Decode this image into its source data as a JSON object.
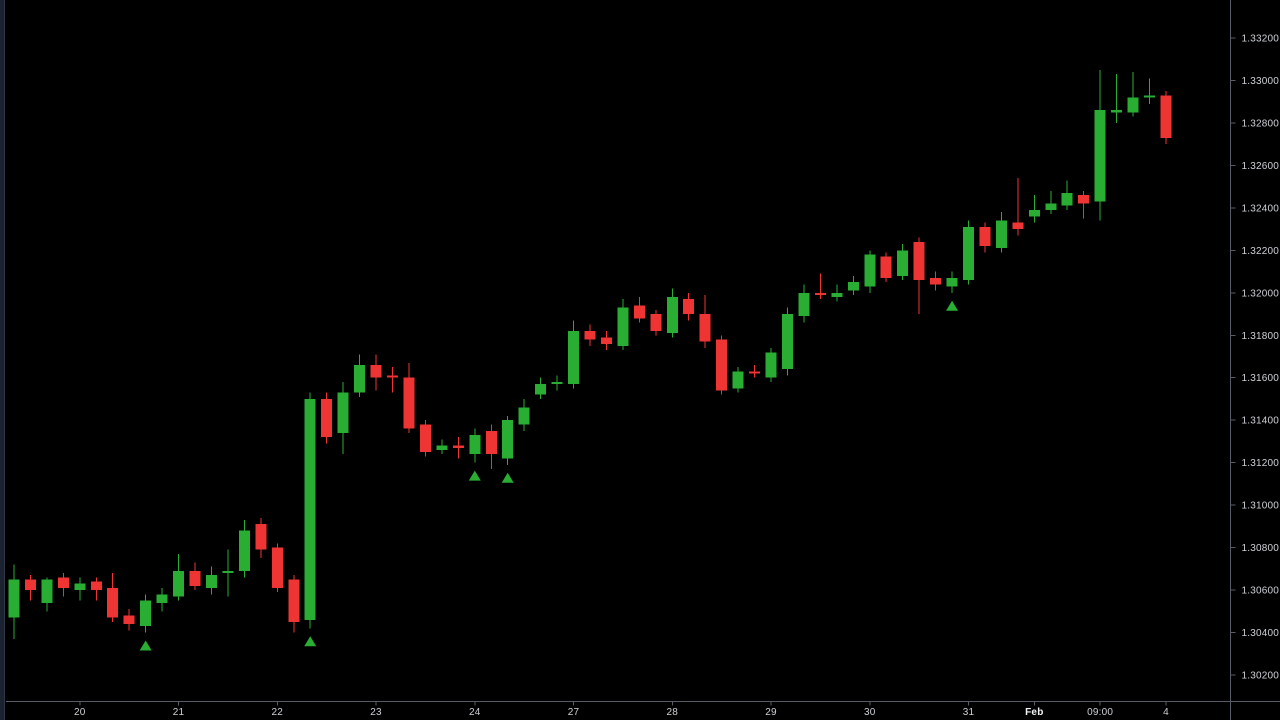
{
  "window": {
    "title": "candlestick-price-chart"
  },
  "chart": {
    "background_color": "#000000",
    "up_color": "#2aad33",
    "down_color": "#ef3434",
    "marker_color": "#2aad33",
    "axis_line_color": "#565b66",
    "axis_text_color": "#cdd0d6",
    "axis_text_emphasis_color": "#f2f3f5",
    "left_edge_color": "#1b2230",
    "left_edge_border_color": "#2e3546"
  },
  "chart_data": {
    "type": "candlestick",
    "title": "",
    "xlabel": "",
    "ylabel": "",
    "grid": false,
    "legend": false,
    "ylim": [
      1.302,
      1.332
    ],
    "y_tick_step": 0.002,
    "y_axis_labels": [
      "1.33200",
      "1.33000",
      "1.32800",
      "1.32600",
      "1.32400",
      "1.32200",
      "1.32000",
      "1.31800",
      "1.31600",
      "1.31400",
      "1.31200",
      "1.31000",
      "1.30800",
      "1.30600",
      "1.30400",
      "1.30200"
    ],
    "x_axis_labels": [
      {
        "index": 4,
        "label": "20"
      },
      {
        "index": 10,
        "label": "21"
      },
      {
        "index": 16,
        "label": "22"
      },
      {
        "index": 22,
        "label": "23"
      },
      {
        "index": 28,
        "label": "24"
      },
      {
        "index": 34,
        "label": "27"
      },
      {
        "index": 40,
        "label": "28"
      },
      {
        "index": 46,
        "label": "29"
      },
      {
        "index": 52,
        "label": "30"
      },
      {
        "index": 58,
        "label": "31"
      },
      {
        "index": 62,
        "label": "Feb",
        "emphasis": true
      },
      {
        "index": 66,
        "label": "09:00"
      },
      {
        "index": 70,
        "label": "4"
      }
    ],
    "candle_format": [
      "open",
      "high",
      "low",
      "close"
    ],
    "candles": [
      [
        1.3047,
        1.3072,
        1.3037,
        1.3065
      ],
      [
        1.3065,
        1.3067,
        1.3055,
        1.306
      ],
      [
        1.3054,
        1.3066,
        1.305,
        1.3065
      ],
      [
        1.3066,
        1.3068,
        1.3057,
        1.3061
      ],
      [
        1.306,
        1.3066,
        1.3055,
        1.3063
      ],
      [
        1.3064,
        1.3066,
        1.3055,
        1.306
      ],
      [
        1.3061,
        1.3068,
        1.3045,
        1.3047
      ],
      [
        1.3048,
        1.3051,
        1.3041,
        1.3044
      ],
      [
        1.3043,
        1.3058,
        1.304,
        1.3055
      ],
      [
        1.3054,
        1.3061,
        1.305,
        1.3058
      ],
      [
        1.3057,
        1.3077,
        1.3055,
        1.3069
      ],
      [
        1.3069,
        1.3073,
        1.306,
        1.3062
      ],
      [
        1.3061,
        1.3071,
        1.3058,
        1.3067
      ],
      [
        1.3068,
        1.3079,
        1.3057,
        1.3069
      ],
      [
        1.3069,
        1.3093,
        1.3066,
        1.3088
      ],
      [
        1.3091,
        1.3094,
        1.3075,
        1.3079
      ],
      [
        1.308,
        1.3082,
        1.3059,
        1.3061
      ],
      [
        1.3065,
        1.3067,
        1.304,
        1.3045
      ],
      [
        1.3046,
        1.3153,
        1.3042,
        1.315
      ],
      [
        1.315,
        1.3153,
        1.3129,
        1.3132
      ],
      [
        1.3134,
        1.3158,
        1.3124,
        1.3153
      ],
      [
        1.3153,
        1.3171,
        1.3151,
        1.3166
      ],
      [
        1.3166,
        1.3171,
        1.3154,
        1.316
      ],
      [
        1.3161,
        1.3165,
        1.3153,
        1.316
      ],
      [
        1.316,
        1.3167,
        1.3134,
        1.3136
      ],
      [
        1.3138,
        1.314,
        1.3123,
        1.3125
      ],
      [
        1.3126,
        1.3131,
        1.3124,
        1.3128
      ],
      [
        1.3128,
        1.3132,
        1.3122,
        1.3127
      ],
      [
        1.3124,
        1.3136,
        1.312,
        1.3133
      ],
      [
        1.3135,
        1.3138,
        1.3117,
        1.3124
      ],
      [
        1.3122,
        1.3142,
        1.3119,
        1.314
      ],
      [
        1.3138,
        1.315,
        1.3135,
        1.3146
      ],
      [
        1.3152,
        1.316,
        1.315,
        1.3157
      ],
      [
        1.3157,
        1.3161,
        1.3154,
        1.3158
      ],
      [
        1.3157,
        1.3187,
        1.3155,
        1.3182
      ],
      [
        1.3182,
        1.3185,
        1.3175,
        1.3178
      ],
      [
        1.3179,
        1.3182,
        1.3173,
        1.3176
      ],
      [
        1.3175,
        1.3197,
        1.3173,
        1.3193
      ],
      [
        1.3194,
        1.3198,
        1.3186,
        1.3188
      ],
      [
        1.319,
        1.3192,
        1.318,
        1.3182
      ],
      [
        1.3181,
        1.3202,
        1.3179,
        1.3198
      ],
      [
        1.3197,
        1.32,
        1.3187,
        1.319
      ],
      [
        1.319,
        1.3199,
        1.3174,
        1.3177
      ],
      [
        1.3178,
        1.318,
        1.3152,
        1.3154
      ],
      [
        1.3155,
        1.3165,
        1.3153,
        1.3163
      ],
      [
        1.3163,
        1.3166,
        1.316,
        1.3162
      ],
      [
        1.316,
        1.3174,
        1.3158,
        1.3172
      ],
      [
        1.3164,
        1.3193,
        1.3161,
        1.319
      ],
      [
        1.3189,
        1.3204,
        1.3186,
        1.32
      ],
      [
        1.32,
        1.3209,
        1.3197,
        1.3199
      ],
      [
        1.3198,
        1.3204,
        1.3196,
        1.32
      ],
      [
        1.3201,
        1.3208,
        1.3199,
        1.3205
      ],
      [
        1.3203,
        1.322,
        1.32,
        1.3218
      ],
      [
        1.3217,
        1.3219,
        1.3205,
        1.3207
      ],
      [
        1.3208,
        1.3223,
        1.3206,
        1.322
      ],
      [
        1.3224,
        1.3226,
        1.319,
        1.3206
      ],
      [
        1.3207,
        1.321,
        1.3201,
        1.3204
      ],
      [
        1.3203,
        1.321,
        1.32,
        1.3207
      ],
      [
        1.3206,
        1.3234,
        1.3204,
        1.3231
      ],
      [
        1.3231,
        1.3233,
        1.3219,
        1.3222
      ],
      [
        1.3221,
        1.3238,
        1.3219,
        1.3234
      ],
      [
        1.3233,
        1.3254,
        1.3227,
        1.323
      ],
      [
        1.3236,
        1.3246,
        1.3233,
        1.3239
      ],
      [
        1.3239,
        1.3248,
        1.3237,
        1.3242
      ],
      [
        1.3241,
        1.3253,
        1.3239,
        1.3247
      ],
      [
        1.3246,
        1.3248,
        1.3235,
        1.3242
      ],
      [
        1.3243,
        1.3305,
        1.3234,
        1.3286
      ],
      [
        1.3285,
        1.3303,
        1.328,
        1.3286
      ],
      [
        1.3285,
        1.3304,
        1.3283,
        1.3292
      ],
      [
        1.3292,
        1.3301,
        1.3289,
        1.3293
      ],
      [
        1.3293,
        1.3295,
        1.327,
        1.3273
      ]
    ],
    "markers": [
      {
        "candle_index": 8,
        "shape": "triangle-up",
        "position": "below"
      },
      {
        "candle_index": 18,
        "shape": "triangle-up",
        "position": "below"
      },
      {
        "candle_index": 28,
        "shape": "triangle-up",
        "position": "below"
      },
      {
        "candle_index": 30,
        "shape": "triangle-up",
        "position": "below"
      },
      {
        "candle_index": 57,
        "shape": "triangle-up",
        "position": "below"
      }
    ],
    "legend_position": "none"
  }
}
